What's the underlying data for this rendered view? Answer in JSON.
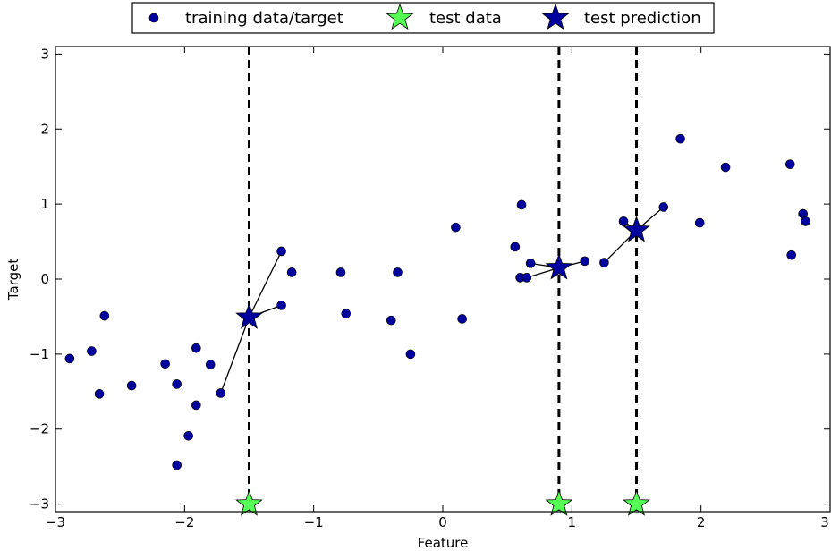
{
  "chart_data": {
    "type": "scatter",
    "xlabel": "Feature",
    "ylabel": "Target",
    "xlim": [
      -3,
      3
    ],
    "ylim": [
      -3.1,
      3.1
    ],
    "xticks": [
      -3,
      -2,
      -1,
      0,
      1,
      2,
      3
    ],
    "yticks": [
      -3,
      -2,
      -1,
      0,
      1,
      2,
      3
    ],
    "xtick_labels": [
      "−3",
      "−2",
      "−1",
      "0",
      "1",
      "2",
      "3"
    ],
    "ytick_labels": [
      "−3",
      "−2",
      "−1",
      "0",
      "1",
      "2",
      "3"
    ],
    "grid": false,
    "legend_position": "top-center",
    "legend": [
      {
        "label": "training data/target",
        "marker": "circle",
        "color": "#00009e"
      },
      {
        "label": "test data",
        "marker": "star",
        "color": "#55ff55"
      },
      {
        "label": "test prediction",
        "marker": "star",
        "color": "#00009e"
      }
    ],
    "series": [
      {
        "name": "training data/target",
        "marker": "circle",
        "color": "#00009e",
        "points": [
          [
            -2.89,
            -1.06
          ],
          [
            -2.72,
            -0.96
          ],
          [
            -2.66,
            -1.53
          ],
          [
            -2.62,
            -0.49
          ],
          [
            -2.41,
            -1.42
          ],
          [
            -2.15,
            -1.13
          ],
          [
            -2.06,
            -1.4
          ],
          [
            -2.06,
            -2.48
          ],
          [
            -1.97,
            -2.09
          ],
          [
            -1.91,
            -0.92
          ],
          [
            -1.91,
            -1.68
          ],
          [
            -1.8,
            -1.14
          ],
          [
            -1.72,
            -1.52
          ],
          [
            -1.25,
            0.37
          ],
          [
            -1.25,
            -0.35
          ],
          [
            -1.17,
            0.09
          ],
          [
            -0.79,
            0.09
          ],
          [
            -0.75,
            -0.46
          ],
          [
            -0.4,
            -0.55
          ],
          [
            -0.35,
            0.09
          ],
          [
            -0.25,
            -1.0
          ],
          [
            0.1,
            0.69
          ],
          [
            0.15,
            -0.53
          ],
          [
            0.56,
            0.43
          ],
          [
            0.6,
            0.02
          ],
          [
            0.61,
            0.99
          ],
          [
            0.65,
            0.02
          ],
          [
            0.68,
            0.21
          ],
          [
            1.1,
            0.24
          ],
          [
            1.25,
            0.22
          ],
          [
            1.4,
            0.77
          ],
          [
            1.71,
            0.96
          ],
          [
            1.84,
            1.87
          ],
          [
            1.99,
            0.75
          ],
          [
            2.19,
            1.49
          ],
          [
            2.69,
            1.53
          ],
          [
            2.7,
            0.32
          ],
          [
            2.79,
            0.87
          ],
          [
            2.81,
            0.77
          ]
        ]
      },
      {
        "name": "test data",
        "marker": "star",
        "color": "#55ff55",
        "points": [
          [
            -1.5,
            -3.0
          ],
          [
            0.9,
            -3.0
          ],
          [
            1.5,
            -3.0
          ]
        ]
      },
      {
        "name": "test prediction",
        "marker": "star",
        "color": "#00009e",
        "points": [
          [
            -1.5,
            -0.51
          ],
          [
            0.9,
            0.15
          ],
          [
            1.5,
            0.65
          ]
        ]
      }
    ],
    "vertical_lines": {
      "x": [
        -1.5,
        0.9,
        1.5
      ],
      "style": "dashed",
      "color": "#000000"
    },
    "neighbor_lines": [
      {
        "from": [
          -1.5,
          -0.51
        ],
        "to": [
          [
            -1.25,
            0.37
          ],
          [
            -1.25,
            -0.35
          ],
          [
            -1.72,
            -1.52
          ]
        ]
      },
      {
        "from": [
          0.9,
          0.15
        ],
        "to": [
          [
            0.68,
            0.21
          ],
          [
            0.65,
            0.02
          ],
          [
            1.1,
            0.24
          ]
        ]
      },
      {
        "from": [
          1.5,
          0.65
        ],
        "to": [
          [
            1.25,
            0.22
          ],
          [
            1.4,
            0.77
          ],
          [
            1.71,
            0.96
          ]
        ]
      }
    ]
  }
}
